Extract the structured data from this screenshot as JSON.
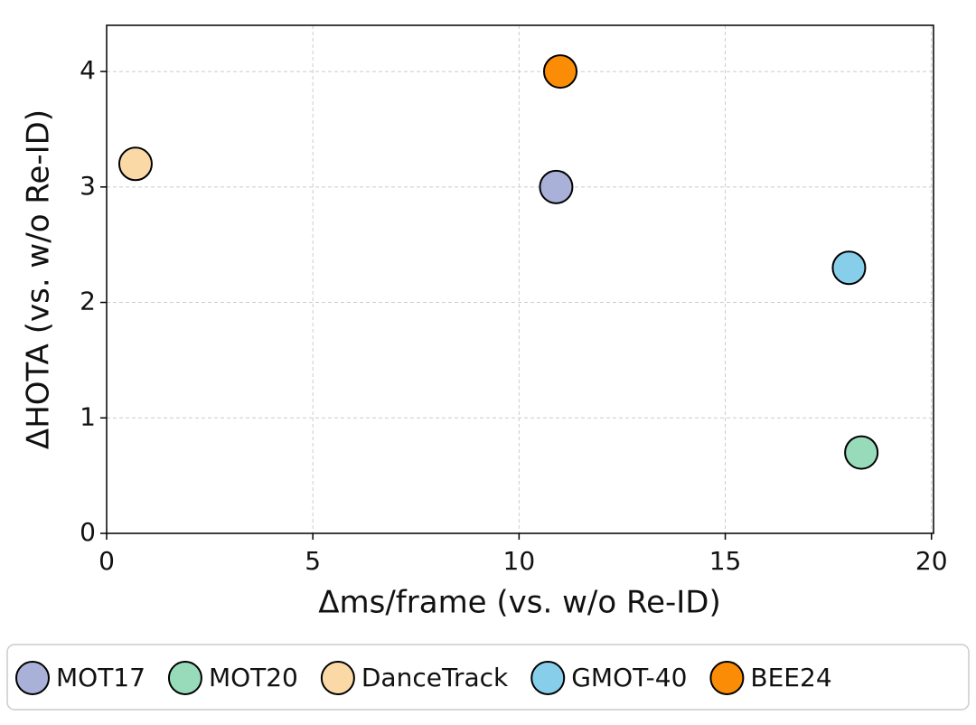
{
  "chart_data": {
    "type": "scatter",
    "xlabel": "Δms/frame (vs. w/o Re-ID)",
    "ylabel": "ΔHOTA (vs. w/o Re-ID)",
    "xlim": [
      0,
      20.05
    ],
    "ylim": [
      0,
      4.4
    ],
    "xticks": [
      0,
      5,
      10,
      15,
      20
    ],
    "yticks": [
      0,
      1,
      2,
      3,
      4
    ],
    "grid": true,
    "legend": "bottom",
    "series": [
      {
        "name": "MOT17",
        "color": "#a9b1d8",
        "x": [
          10.9
        ],
        "values": [
          3.0
        ]
      },
      {
        "name": "MOT20",
        "color": "#97dbbb",
        "x": [
          18.3
        ],
        "values": [
          0.7
        ]
      },
      {
        "name": "DanceTrack",
        "color": "#fbd9a7",
        "x": [
          0.7
        ],
        "values": [
          3.2
        ]
      },
      {
        "name": "GMOT-40",
        "color": "#86ceea",
        "x": [
          18.0
        ],
        "values": [
          2.3
        ]
      },
      {
        "name": "BEE24",
        "color": "#fb8c06",
        "x": [
          11.0
        ],
        "values": [
          4.0
        ]
      }
    ]
  }
}
